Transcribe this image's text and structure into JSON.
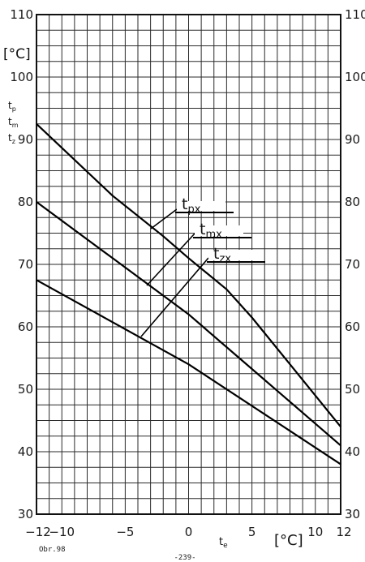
{
  "chart_data": {
    "type": "line",
    "x_unit": "[°C]",
    "y_unit": "[°C]",
    "xlabel": "te",
    "ylabel_lines": [
      "tp",
      "tm",
      "tz"
    ],
    "xlim": [
      -12,
      12
    ],
    "ylim": [
      30,
      110
    ],
    "x_ticks": [
      -12,
      -10,
      -5,
      0,
      5,
      10,
      12
    ],
    "y_ticks": [
      30,
      40,
      50,
      60,
      70,
      80,
      90,
      100,
      110
    ],
    "grid": true,
    "series": [
      {
        "name": "tpx",
        "name_base": "t",
        "name_sub": "px",
        "x": [
          -12,
          -6,
          -2,
          0,
          3,
          5,
          8,
          12
        ],
        "y": [
          92.5,
          81,
          74.5,
          71,
          66,
          61.5,
          54,
          44
        ]
      },
      {
        "name": "tmx",
        "name_base": "t",
        "name_sub": "mx",
        "x": [
          -12,
          -6,
          0,
          4,
          8,
          12
        ],
        "y": [
          80,
          71,
          62,
          55,
          48,
          41
        ]
      },
      {
        "name": "tzx",
        "name_base": "t",
        "name_sub": "zx",
        "x": [
          -12,
          0,
          12
        ],
        "y": [
          67.5,
          54,
          38
        ]
      }
    ]
  },
  "caption": "Obr.98",
  "page_number": "-239-"
}
